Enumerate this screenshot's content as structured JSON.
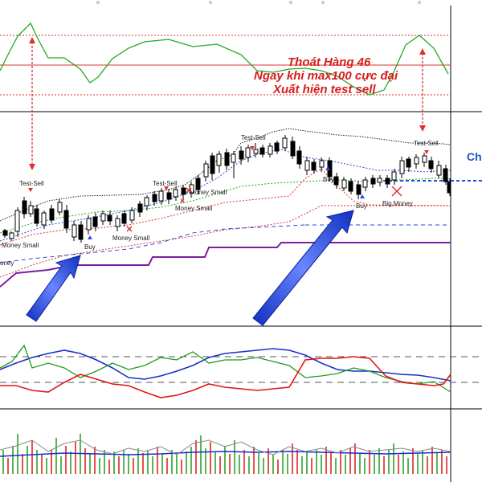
{
  "annotation": {
    "line1": "Thoát Hàng 46",
    "line2": "Ngay khi max100 cực đại",
    "line3": "Xuất hiện test sell"
  },
  "edge_label": "Ch",
  "signals": [
    {
      "text": "Test-Sell"
    },
    {
      "text": "Test-Sell"
    },
    {
      "text": "Test-Sell"
    },
    {
      "text": "Test-Sell"
    },
    {
      "text": "Buy"
    },
    {
      "text": "Buy"
    },
    {
      "text": "Buy"
    },
    {
      "text": "Money Small"
    },
    {
      "text": "Money Small"
    },
    {
      "text": "Money Small"
    },
    {
      "text": "Money Small"
    },
    {
      "text": "Big Money"
    },
    {
      "text": "oney"
    }
  ],
  "colors": {
    "oscillator": "#22aa22",
    "buy_arrow": "#1f3fd6",
    "level_red": "#e03030",
    "bull_candle": "#ffffff",
    "bear_candle": "#000000",
    "purple_band": "#7a1fa0",
    "blue_band": "#2a4be0"
  },
  "icons": [
    "buy-arrow-icon",
    "red-cross-icon",
    "signal-down-arrow-icon",
    "signal-up-arrow-icon",
    "double-arrow-icon"
  ]
}
